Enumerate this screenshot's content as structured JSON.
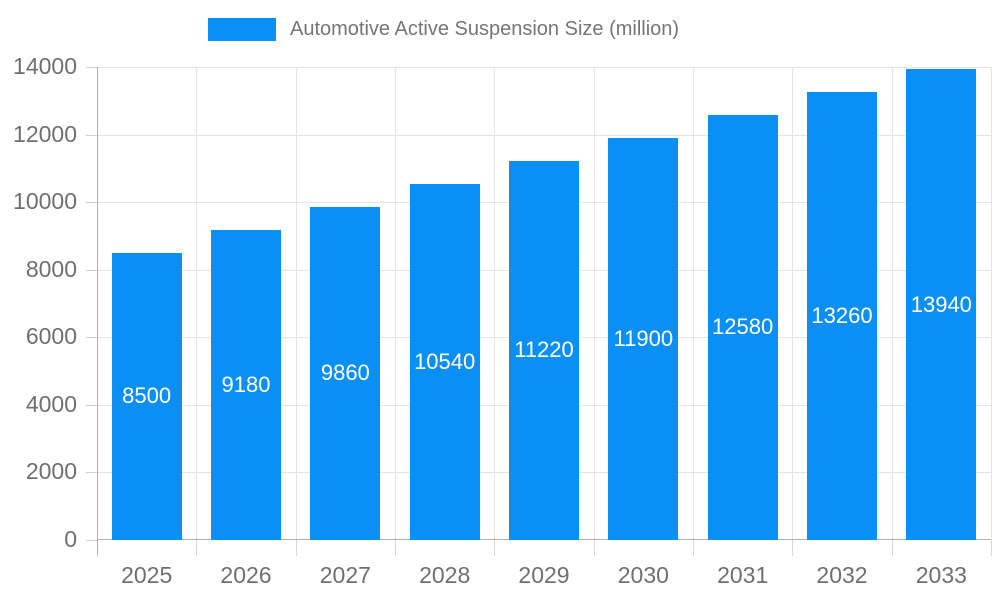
{
  "legend": {
    "label": "Automotive Active Suspension Size (million)"
  },
  "chart_data": {
    "type": "bar",
    "title": "Automotive Active Suspension Size (million)",
    "series_name": "Automotive Active Suspension Size (million)",
    "categories": [
      "2025",
      "2026",
      "2027",
      "2028",
      "2029",
      "2030",
      "2031",
      "2032",
      "2033"
    ],
    "values": [
      8500,
      9180,
      9860,
      10540,
      11220,
      11900,
      12580,
      13260,
      13940
    ],
    "xlabel": "",
    "ylabel": "",
    "ylim": [
      0,
      14000
    ],
    "yticks": [
      0,
      2000,
      4000,
      6000,
      8000,
      10000,
      12000,
      14000
    ],
    "grid": true,
    "legend_position": "top",
    "value_labels": "inside-center-white",
    "colors": {
      "bar": "#0a90f4",
      "bar_label_text": "#ffffff",
      "axis_text": "#6f6f6f",
      "legend_text": "#757575",
      "grid_line": "#e4e4e4",
      "axis_line": "#b0b0b0",
      "background": "#ffffff"
    }
  }
}
